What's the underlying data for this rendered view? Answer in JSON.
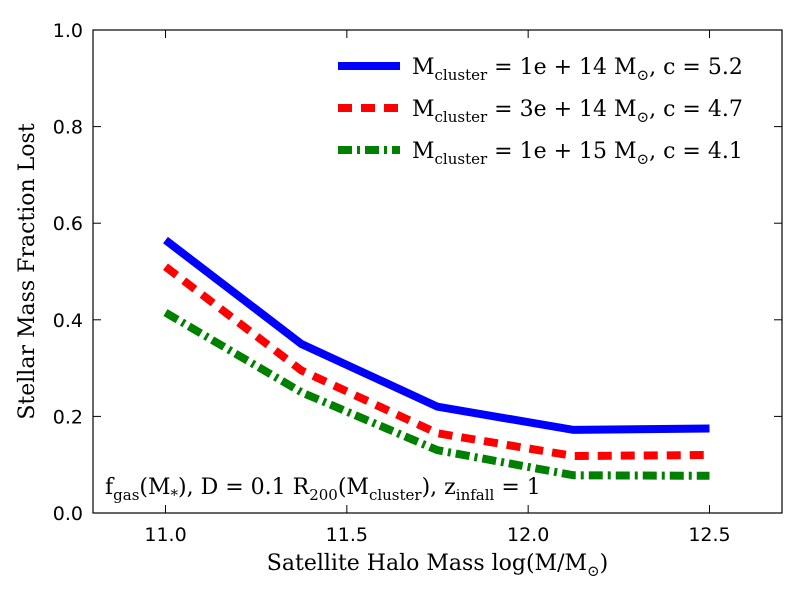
{
  "chart_data": {
    "type": "line",
    "xlabel_main": "Satellite Halo Mass ",
    "xlabel_math_prefix": "log(M/M",
    "xlabel_math_suffix": ")",
    "ylabel": "Stellar Mass Fraction Lost",
    "xlim": [
      10.8,
      12.7
    ],
    "ylim": [
      0.0,
      1.0
    ],
    "x_ticks": [
      11.0,
      11.5,
      12.0,
      12.5
    ],
    "x_tick_labels": [
      "11.0",
      "11.5",
      "12.0",
      "12.5"
    ],
    "y_ticks": [
      0.0,
      0.2,
      0.4,
      0.6,
      0.8,
      1.0
    ],
    "y_tick_labels": [
      "0.0",
      "0.2",
      "0.4",
      "0.6",
      "0.8",
      "1.0"
    ],
    "grid": false,
    "legend_position": "top-right",
    "x": [
      11.0,
      11.375,
      11.75,
      12.125,
      12.5
    ],
    "series": [
      {
        "name": "M_cluster = 1e+14 M_⊙, c = 5.2",
        "legend_mass": "1e + 14",
        "legend_c": "5.2",
        "color": "#0000ff",
        "style": "solid",
        "values": [
          0.565,
          0.35,
          0.22,
          0.172,
          0.175
        ]
      },
      {
        "name": "M_cluster = 3e+14 M_⊙, c = 4.7",
        "legend_mass": "3e + 14",
        "legend_c": "4.7",
        "color": "#ff0000",
        "style": "dashed",
        "values": [
          0.51,
          0.295,
          0.165,
          0.118,
          0.12
        ]
      },
      {
        "name": "M_cluster = 1e+15 M_⊙, c = 4.1",
        "legend_mass": "1e + 15",
        "legend_c": "4.1",
        "color": "#008000",
        "style": "dashdot",
        "values": [
          0.415,
          0.25,
          0.13,
          0.078,
          0.077
        ]
      }
    ],
    "annotation": {
      "f": "f",
      "f_sub": "gas",
      "f_arg": "(M",
      "f_arg_sub": "*",
      "f_arg_close": "), D = 0.1 R",
      "r_sub": "200",
      "r_arg": "(M",
      "r_arg_sub": "cluster",
      "r_arg_close": "), z",
      "z_sub": "infall",
      "z_val": " = 1"
    },
    "legend_prefix": "M",
    "legend_sub": "cluster",
    "legend_equals": " = ",
    "legend_msun": "M",
    "legend_c_prefix": ", c = "
  }
}
